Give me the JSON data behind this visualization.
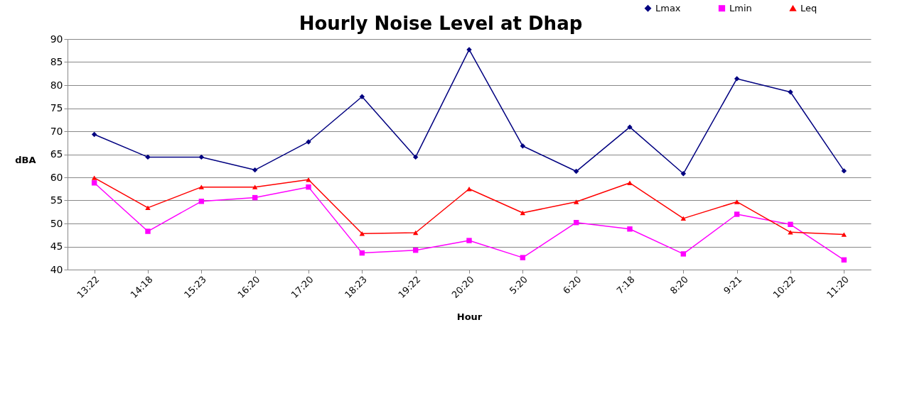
{
  "chart_data": {
    "type": "line",
    "title": "Hourly Noise Level at Dhap",
    "xlabel": "Hour",
    "ylabel": "dBA",
    "categories": [
      "13:22",
      "14:18",
      "15:23",
      "16:20",
      "17:20",
      "18:23",
      "19:22",
      "20:20",
      "5:20",
      "6:20",
      "7:18",
      "8:20",
      "9:21",
      "10:22",
      "11:20"
    ],
    "series": [
      {
        "name": "Lmax",
        "color": "#000080",
        "marker": "diamond",
        "values": [
          69.3,
          64.4,
          64.4,
          61.6,
          67.7,
          77.5,
          64.4,
          87.7,
          66.8,
          61.3,
          70.9,
          60.8,
          81.4,
          78.5,
          61.4
        ]
      },
      {
        "name": "Lmin",
        "color": "#ff00ff",
        "marker": "square",
        "values": [
          58.8,
          48.3,
          54.8,
          55.6,
          57.9,
          43.6,
          44.2,
          46.3,
          42.6,
          50.2,
          48.8,
          43.4,
          52.0,
          49.8,
          42.1
        ]
      },
      {
        "name": "Leq",
        "color": "#ff0000",
        "marker": "triangle",
        "values": [
          59.9,
          53.4,
          57.9,
          57.9,
          59.5,
          47.8,
          48.0,
          57.5,
          52.3,
          54.7,
          58.8,
          51.1,
          54.7,
          48.1,
          47.6
        ]
      }
    ],
    "ylim": [
      40,
      90
    ],
    "yticks": [
      40,
      45,
      50,
      55,
      60,
      65,
      70,
      75,
      80,
      85,
      90
    ],
    "grid": "y",
    "legend": "top right",
    "line_style": "solid"
  }
}
